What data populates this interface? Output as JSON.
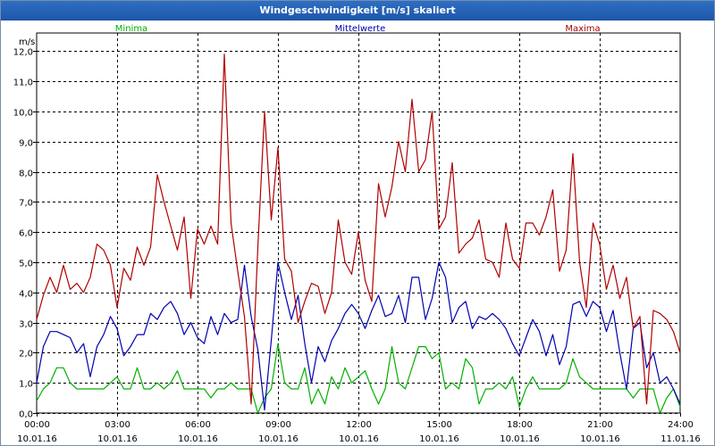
{
  "window": {
    "title": "Windgeschwindigkeit [m/s] skaliert"
  },
  "chart_data": {
    "type": "line",
    "title": "Windgeschwindigkeit [m/s] skaliert",
    "ylabel": "m/s",
    "xlabel": "",
    "ylim": [
      0,
      12.6
    ],
    "xlim": [
      0,
      24
    ],
    "y_ticks": [
      0,
      1,
      2,
      3,
      4,
      5,
      6,
      7,
      8,
      9,
      10,
      11,
      12
    ],
    "y_tick_labels": [
      "0,0",
      "1,0",
      "2,0",
      "3,0",
      "4,0",
      "5,0",
      "6,0",
      "7,0",
      "8,0",
      "9,0",
      "10,0",
      "11,0",
      "12,0"
    ],
    "x_ticks": [
      0,
      3,
      6,
      9,
      12,
      15,
      18,
      21,
      24
    ],
    "x_tick_labels": [
      {
        "time": "00:00",
        "date": "10.01.16"
      },
      {
        "time": "03:00",
        "date": "10.01.16"
      },
      {
        "time": "06:00",
        "date": "10.01.16"
      },
      {
        "time": "09:00",
        "date": "10.01.16"
      },
      {
        "time": "12:00",
        "date": "10.01.16"
      },
      {
        "time": "15:00",
        "date": "10.01.16"
      },
      {
        "time": "18:00",
        "date": "10.01.16"
      },
      {
        "time": "21:00",
        "date": "10.01.16"
      },
      {
        "time": "24:00",
        "date": "11.01.16"
      }
    ],
    "grid": true,
    "legend": "top",
    "series": [
      {
        "name": "Minima",
        "color": "#00b000",
        "x": [
          0,
          0.25,
          0.5,
          0.75,
          1,
          1.25,
          1.5,
          1.75,
          2,
          2.25,
          2.5,
          2.75,
          3,
          3.25,
          3.5,
          3.75,
          4,
          4.25,
          4.5,
          4.75,
          5,
          5.25,
          5.5,
          5.75,
          6,
          6.25,
          6.5,
          6.75,
          7,
          7.25,
          7.5,
          7.75,
          8,
          8.25,
          8.5,
          8.75,
          9,
          9.25,
          9.5,
          9.75,
          10,
          10.25,
          10.5,
          10.75,
          11,
          11.25,
          11.5,
          11.75,
          12,
          12.25,
          12.5,
          12.75,
          13,
          13.25,
          13.5,
          13.75,
          14,
          14.25,
          14.5,
          14.75,
          15,
          15.25,
          15.5,
          15.75,
          16,
          16.25,
          16.5,
          16.75,
          17,
          17.25,
          17.5,
          17.75,
          18,
          18.25,
          18.5,
          18.75,
          19,
          19.25,
          19.5,
          19.75,
          20,
          20.25,
          20.5,
          20.75,
          21,
          21.25,
          21.5,
          21.75,
          22,
          22.25,
          22.5,
          22.75,
          23,
          23.25,
          23.5,
          23.75,
          24
        ],
        "values": [
          0.4,
          0.8,
          1.0,
          1.5,
          1.5,
          1.0,
          0.8,
          0.8,
          0.8,
          0.8,
          0.8,
          1.0,
          1.2,
          0.8,
          0.8,
          1.5,
          0.8,
          0.8,
          1.0,
          0.8,
          1.0,
          1.4,
          0.8,
          0.8,
          0.8,
          0.8,
          0.5,
          0.8,
          0.8,
          1.0,
          0.8,
          0.8,
          0.8,
          0.0,
          0.5,
          0.8,
          2.3,
          1.0,
          0.8,
          0.8,
          1.5,
          0.3,
          0.8,
          0.3,
          1.2,
          0.8,
          1.5,
          1.0,
          1.2,
          1.4,
          0.8,
          0.3,
          0.8,
          2.2,
          1.0,
          0.8,
          1.5,
          2.2,
          2.2,
          1.8,
          2.0,
          0.8,
          1.0,
          0.8,
          1.8,
          1.5,
          0.3,
          0.8,
          0.8,
          1.0,
          0.8,
          1.2,
          0.2,
          0.8,
          1.2,
          0.8,
          0.8,
          0.8,
          0.8,
          1.0,
          1.8,
          1.2,
          1.0,
          0.8,
          0.8,
          0.8,
          0.8,
          0.8,
          0.8,
          0.5,
          0.8,
          0.8,
          0.8,
          0.0,
          0.5,
          0.8,
          0.2
        ]
      },
      {
        "name": "Mittelwerte",
        "color": "#0000b0",
        "x": [
          0,
          0.25,
          0.5,
          0.75,
          1,
          1.25,
          1.5,
          1.75,
          2,
          2.25,
          2.5,
          2.75,
          3,
          3.25,
          3.5,
          3.75,
          4,
          4.25,
          4.5,
          4.75,
          5,
          5.25,
          5.5,
          5.75,
          6,
          6.25,
          6.5,
          6.75,
          7,
          7.25,
          7.5,
          7.75,
          8,
          8.25,
          8.5,
          8.75,
          9,
          9.25,
          9.5,
          9.75,
          10,
          10.25,
          10.5,
          10.75,
          11,
          11.25,
          11.5,
          11.75,
          12,
          12.25,
          12.5,
          12.75,
          13,
          13.25,
          13.5,
          13.75,
          14,
          14.25,
          14.5,
          14.75,
          15,
          15.25,
          15.5,
          15.75,
          16,
          16.25,
          16.5,
          16.75,
          17,
          17.25,
          17.5,
          17.75,
          18,
          18.25,
          18.5,
          18.75,
          19,
          19.25,
          19.5,
          19.75,
          20,
          20.25,
          20.5,
          20.75,
          21,
          21.25,
          21.5,
          21.75,
          22,
          22.25,
          22.5,
          22.75,
          23,
          23.25,
          23.5,
          23.75,
          24
        ],
        "values": [
          1.0,
          2.2,
          2.7,
          2.7,
          2.6,
          2.5,
          2.0,
          2.3,
          1.2,
          2.2,
          2.6,
          3.2,
          2.8,
          1.9,
          2.2,
          2.6,
          2.6,
          3.3,
          3.1,
          3.5,
          3.7,
          3.3,
          2.6,
          3.0,
          2.5,
          2.3,
          3.2,
          2.6,
          3.3,
          3.0,
          3.1,
          4.9,
          3.2,
          2.1,
          0.1,
          2.4,
          5.0,
          4.0,
          3.1,
          3.9,
          2.3,
          1.0,
          2.2,
          1.7,
          2.4,
          2.8,
          3.3,
          3.6,
          3.3,
          2.8,
          3.4,
          3.9,
          3.2,
          3.3,
          3.9,
          3.0,
          4.5,
          4.5,
          3.1,
          3.8,
          5.0,
          4.5,
          3.0,
          3.5,
          3.7,
          2.8,
          3.2,
          3.1,
          3.3,
          3.1,
          2.8,
          2.3,
          1.9,
          2.5,
          3.1,
          2.7,
          1.9,
          2.6,
          1.6,
          2.2,
          3.6,
          3.7,
          3.2,
          3.7,
          3.5,
          2.7,
          3.4,
          2.0,
          0.8,
          2.8,
          3.0,
          1.5,
          2.0,
          1.0,
          1.2,
          0.8,
          0.3
        ]
      },
      {
        "name": "Maxima",
        "color": "#b00000",
        "x": [
          0,
          0.25,
          0.5,
          0.75,
          1,
          1.25,
          1.5,
          1.75,
          2,
          2.25,
          2.5,
          2.75,
          3,
          3.25,
          3.5,
          3.75,
          4,
          4.25,
          4.5,
          4.75,
          5,
          5.25,
          5.5,
          5.75,
          6,
          6.25,
          6.5,
          6.75,
          7,
          7.25,
          7.5,
          7.75,
          8,
          8.25,
          8.5,
          8.75,
          9,
          9.25,
          9.5,
          9.75,
          10,
          10.25,
          10.5,
          10.75,
          11,
          11.25,
          11.5,
          11.75,
          12,
          12.25,
          12.5,
          12.75,
          13,
          13.25,
          13.5,
          13.75,
          14,
          14.25,
          14.5,
          14.75,
          15,
          15.25,
          15.5,
          15.75,
          16,
          16.25,
          16.5,
          16.75,
          17,
          17.25,
          17.5,
          17.75,
          18,
          18.25,
          18.5,
          18.75,
          19,
          19.25,
          19.5,
          19.75,
          20,
          20.25,
          20.5,
          20.75,
          21,
          21.25,
          21.5,
          21.75,
          22,
          22.25,
          22.5,
          22.75,
          23,
          23.25,
          23.5,
          23.75,
          24
        ],
        "values": [
          3.1,
          3.9,
          4.5,
          4.0,
          4.9,
          4.1,
          4.3,
          4.0,
          4.5,
          5.6,
          5.4,
          4.9,
          3.5,
          4.8,
          4.4,
          5.5,
          4.9,
          5.5,
          7.9,
          7.0,
          6.2,
          5.4,
          6.5,
          3.8,
          6.1,
          5.6,
          6.2,
          5.6,
          11.9,
          6.3,
          4.7,
          3.2,
          0.3,
          5.5,
          10.0,
          6.4,
          8.8,
          5.1,
          4.7,
          3.0,
          3.7,
          4.3,
          4.2,
          3.3,
          4.0,
          6.4,
          5.0,
          4.6,
          6.0,
          4.4,
          3.7,
          7.6,
          6.5,
          7.5,
          9.0,
          8.0,
          10.4,
          8.0,
          8.4,
          10.0,
          6.1,
          6.5,
          8.3,
          5.3,
          5.6,
          5.8,
          6.4,
          5.1,
          5.0,
          4.5,
          6.3,
          5.1,
          4.8,
          6.3,
          6.3,
          5.9,
          6.5,
          7.4,
          4.7,
          5.4,
          8.6,
          5.0,
          3.5,
          6.3,
          5.6,
          4.1,
          4.9,
          3.8,
          4.5,
          2.8,
          3.2,
          0.3,
          3.4,
          3.3,
          3.1,
          2.7,
          2.0
        ]
      }
    ]
  }
}
